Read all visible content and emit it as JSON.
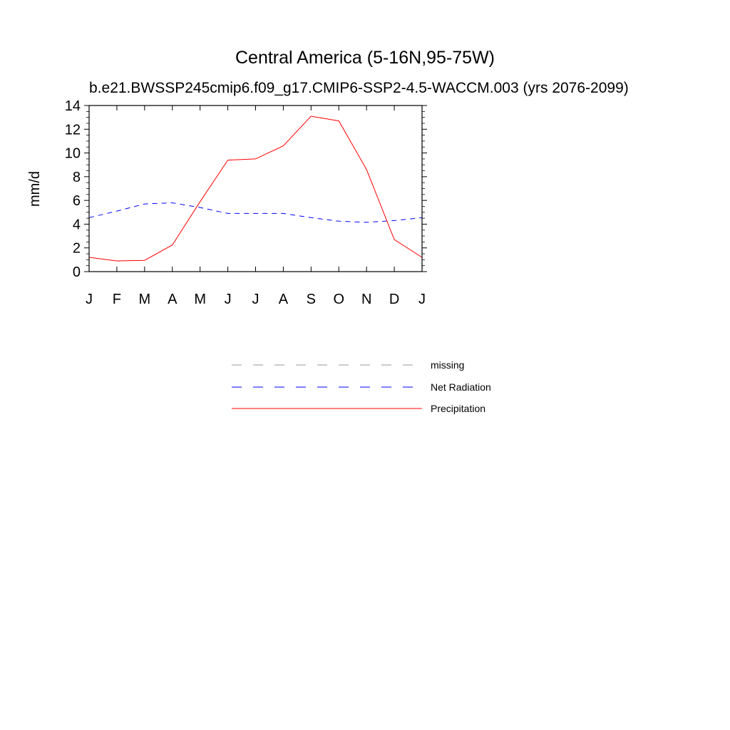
{
  "chart_data": {
    "type": "line",
    "title": "Central America (5-16N,95-75W)",
    "subtitle": "b.e21.BWSSP245cmip6.f09_g17.CMIP6-SSP2-4.5-WACCM.003 (yrs 2076-2099)",
    "ylabel": "mm/d",
    "xlabel": "",
    "categories": [
      "J",
      "F",
      "M",
      "A",
      "M",
      "J",
      "J",
      "A",
      "S",
      "O",
      "N",
      "D",
      "J"
    ],
    "ylim": [
      0,
      14
    ],
    "yticks": [
      0,
      2,
      4,
      6,
      8,
      10,
      12,
      14
    ],
    "yticklabels": [
      "0",
      "2",
      "4",
      "6",
      "8",
      "10",
      "12",
      "14"
    ],
    "grid": false,
    "legend_position": "below",
    "series": [
      {
        "name": "Net Radiation",
        "color": "#0000ff",
        "dash": "dashed",
        "values": [
          4.55,
          5.1,
          5.7,
          5.8,
          5.4,
          4.9,
          4.9,
          4.9,
          4.55,
          4.25,
          4.15,
          4.3,
          4.55
        ]
      },
      {
        "name": "Precipitation",
        "color": "#ff0000",
        "dash": "solid",
        "values": [
          1.2,
          0.9,
          0.95,
          2.25,
          5.9,
          9.4,
          9.5,
          10.6,
          13.1,
          12.7,
          8.6,
          2.7,
          1.2
        ]
      }
    ],
    "legend": [
      {
        "label": "missing",
        "color": "#999999",
        "dash": "dashed"
      },
      {
        "label": "Net Radiation",
        "color": "#0000ff",
        "dash": "dashed"
      },
      {
        "label": "Precipitation",
        "color": "#ff0000",
        "dash": "solid"
      }
    ]
  }
}
